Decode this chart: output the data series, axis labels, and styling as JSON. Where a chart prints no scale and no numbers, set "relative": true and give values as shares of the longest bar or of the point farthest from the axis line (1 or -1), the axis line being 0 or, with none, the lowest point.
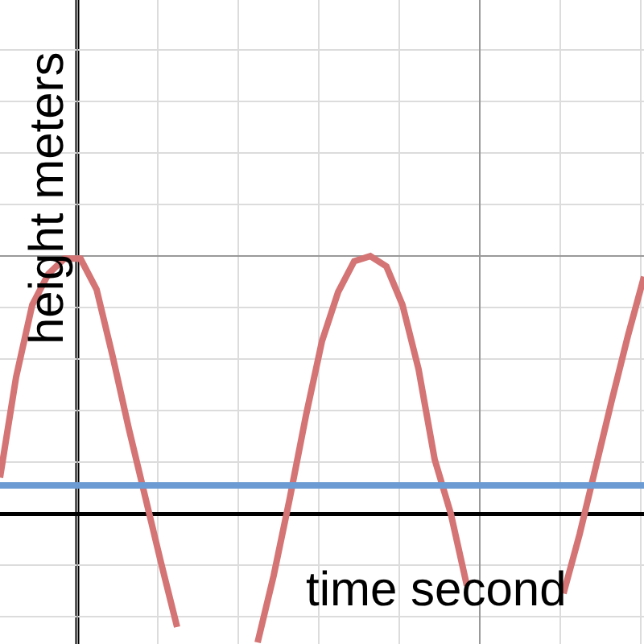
{
  "chart_data": {
    "type": "line",
    "relative": true,
    "xlabel": "time second",
    "ylabel": "height meters",
    "grid": true,
    "tick_labels": false,
    "categories": [
      null,
      null,
      null,
      null,
      null,
      null,
      null,
      null,
      null,
      null,
      null,
      null,
      null,
      null,
      null,
      null,
      null,
      null,
      null,
      null,
      null,
      null,
      null,
      null,
      null,
      null,
      null,
      null,
      null,
      null,
      null,
      null,
      null,
      null,
      null,
      null,
      null,
      null,
      null,
      null,
      null
    ],
    "series": [
      {
        "color": "#d47474",
        "values": [
          0.14,
          0.53,
          0.81,
          0.93,
          0.99,
          0.99,
          0.87,
          0.61,
          0.33,
          0.07,
          -0.19,
          -0.44,
          null,
          null,
          null,
          null,
          -0.5,
          -0.24,
          0.06,
          0.38,
          0.67,
          0.86,
          0.98,
          1,
          0.96,
          0.81,
          0.56,
          0.21,
          0,
          -0.28,
          null,
          null,
          null,
          null,
          null,
          -0.31,
          -0.08,
          0.18,
          0.44,
          0.69,
          0.92
        ]
      },
      {
        "color": "#6b9bd2",
        "values": [
          0.11,
          0.11,
          0.11,
          0.11,
          0.11,
          0.11,
          0.11,
          0.11,
          0.11,
          0.11,
          0.11,
          0.11,
          0.11,
          0.11,
          0.11,
          0.11,
          0.11,
          0.11,
          0.11,
          0.11,
          0.11,
          0.11,
          0.11,
          0.11,
          0.11,
          0.11,
          0.11,
          0.11,
          0.11,
          0.11,
          0.11,
          0.11,
          0.11,
          0.11,
          0.11,
          0.11,
          0.11,
          0.11,
          0.11,
          0.11,
          0.11
        ]
      }
    ]
  }
}
